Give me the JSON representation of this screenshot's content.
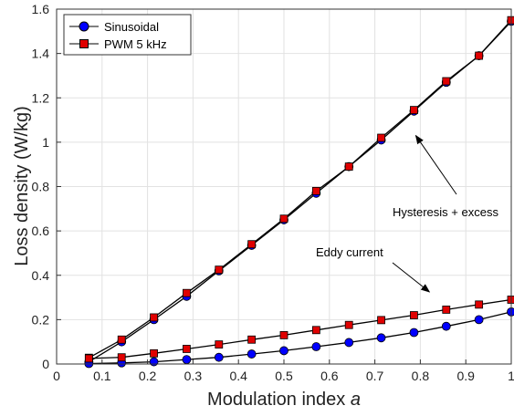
{
  "chart_data": {
    "type": "line",
    "title": "",
    "xlabel": "Modulation index",
    "xlabel_variable": "a",
    "ylabel": "Loss density (W/kg)",
    "xlim": [
      0,
      1
    ],
    "ylim": [
      0,
      1.6
    ],
    "xticks": [
      0,
      0.1,
      0.2,
      0.3,
      0.4,
      0.5,
      0.6,
      0.7,
      0.8,
      0.9,
      1
    ],
    "xtick_labels": [
      "0",
      "0.1",
      "0.2",
      "0.3",
      "0.4",
      "0.5",
      "0.6",
      "0.7",
      "0.8",
      "0.9",
      "1"
    ],
    "yticks": [
      0,
      0.2,
      0.4,
      0.6,
      0.8,
      1,
      1.2,
      1.4,
      1.6
    ],
    "ytick_labels": [
      "0",
      "0.2",
      "0.4",
      "0.6",
      "0.8",
      "1",
      "1.2",
      "1.4",
      "1.6"
    ],
    "grid": true,
    "legend_position": "top-left",
    "x": [
      0.071,
      0.143,
      0.214,
      0.286,
      0.357,
      0.429,
      0.5,
      0.571,
      0.643,
      0.714,
      0.786,
      0.857,
      0.929,
      1.0
    ],
    "series": [
      {
        "name": "Sinusoidal",
        "group": "hysteresis-excess",
        "marker": "circle",
        "color": "#0000ff",
        "values": [
          0.01,
          0.1,
          0.2,
          0.305,
          0.42,
          0.535,
          0.65,
          0.77,
          0.89,
          1.01,
          1.14,
          1.27,
          1.39,
          1.545
        ]
      },
      {
        "name": "PWM 5 kHz",
        "group": "hysteresis-excess",
        "marker": "square",
        "color": "#e00000",
        "values": [
          0.028,
          0.11,
          0.21,
          0.32,
          0.425,
          0.54,
          0.655,
          0.78,
          0.89,
          1.02,
          1.145,
          1.275,
          1.39,
          1.55
        ]
      },
      {
        "name": "Sinusoidal",
        "group": "eddy-current",
        "marker": "circle",
        "color": "#0000ff",
        "values": [
          0.002,
          0.005,
          0.01,
          0.02,
          0.03,
          0.045,
          0.06,
          0.078,
          0.097,
          0.118,
          0.142,
          0.17,
          0.2,
          0.235
        ]
      },
      {
        "name": "PWM 5 kHz",
        "group": "eddy-current",
        "marker": "square",
        "color": "#e00000",
        "values": [
          0.025,
          0.03,
          0.048,
          0.068,
          0.088,
          0.11,
          0.13,
          0.153,
          0.176,
          0.198,
          0.22,
          0.245,
          0.268,
          0.29
        ]
      }
    ],
    "legend": [
      {
        "name": "Sinusoidal",
        "marker": "circle",
        "color": "#0000ff"
      },
      {
        "name": "PWM 5 kHz",
        "marker": "square",
        "color": "#e00000"
      }
    ],
    "annotations": [
      {
        "text": "Hysteresis + excess",
        "arrow_to": [
          0.79,
          1.03
        ]
      },
      {
        "text": "Eddy current",
        "arrow_to": [
          0.82,
          0.325
        ]
      }
    ]
  }
}
